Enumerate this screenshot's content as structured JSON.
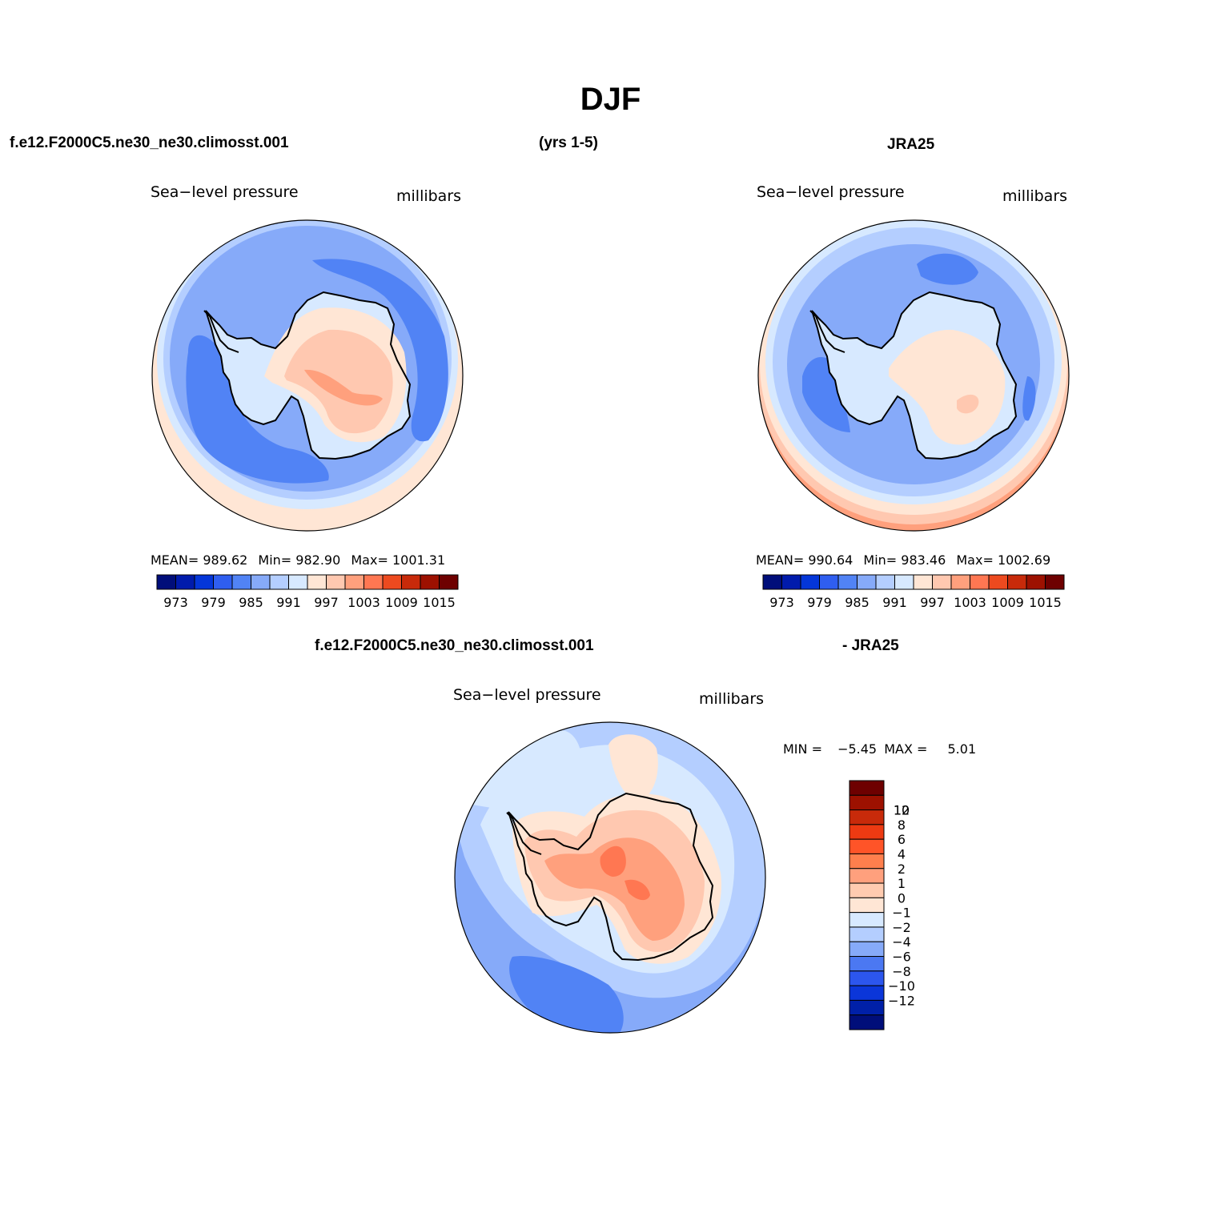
{
  "title": "DJF",
  "top_left_case": "f.e12.F2000C5.ne30_ne30.climosst.001",
  "years": "(yrs 1-5)",
  "top_right_case": "JRA25",
  "panels": [
    {
      "variable": "Sea−level pressure",
      "units": "millibars",
      "stats": {
        "mean_label": "MEAN=",
        "mean": "989.62",
        "min_label": "Min=",
        "min": "982.90",
        "max_label": "Max=",
        "max": "1001.31"
      }
    },
    {
      "variable": "Sea−level pressure",
      "units": "millibars",
      "stats": {
        "mean_label": "MEAN=",
        "mean": "990.64",
        "min_label": "Min=",
        "min": "983.46",
        "max_label": "Max=",
        "max": "1002.69"
      }
    }
  ],
  "abs_colorbar": {
    "colors": [
      "#000e7a",
      "#001bac",
      "#0436d9",
      "#2f5ef0",
      "#5183f5",
      "#86aaf9",
      "#b4ceff",
      "#d7e9ff",
      "#ffe6d5",
      "#ffc8b0",
      "#ffa07d",
      "#ff7752",
      "#ed4a1f",
      "#c82a0a",
      "#9d1100",
      "#6e0000"
    ],
    "ticks": [
      "973",
      "979",
      "985",
      "991",
      "997",
      "1003",
      "1009",
      "1015"
    ]
  },
  "diff": {
    "case_label": "f.e12.F2000C5.ne30_ne30.climosst.001",
    "minus_label": "- JRA25",
    "variable": "Sea−level pressure",
    "units": "millibars",
    "min_label": "MIN =",
    "min": "−5.45",
    "max_label": "MAX =",
    "max": "5.01",
    "colorbar": {
      "colors": [
        "#6e0000",
        "#9d1100",
        "#c82a0a",
        "#ed3a12",
        "#ff5428",
        "#ff7f4d",
        "#ffa07d",
        "#ffcbb0",
        "#ffe6d5",
        "#d7e9ff",
        "#b4ceff",
        "#86aaf9",
        "#4b78f2",
        "#2c56ee",
        "#0b36d9",
        "#0020a8",
        "#000e7a"
      ],
      "labels": [
        "12",
        "10",
        "8",
        "6",
        "4",
        "2",
        "1",
        "0",
        "−1",
        "−2",
        "−4",
        "−6",
        "−8",
        "−10",
        "−12"
      ]
    }
  }
}
